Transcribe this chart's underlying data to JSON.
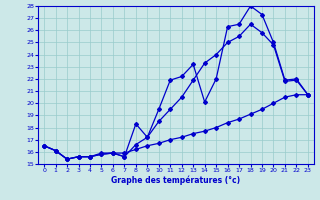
{
  "xlabel": "Graphe des températures (°c)",
  "xlim": [
    -0.5,
    23.5
  ],
  "ylim": [
    15,
    28
  ],
  "xticks": [
    0,
    1,
    2,
    3,
    4,
    5,
    6,
    7,
    8,
    9,
    10,
    11,
    12,
    13,
    14,
    15,
    16,
    17,
    18,
    19,
    20,
    21,
    22,
    23
  ],
  "yticks": [
    15,
    16,
    17,
    18,
    19,
    20,
    21,
    22,
    23,
    24,
    25,
    26,
    27,
    28
  ],
  "background_color": "#cce8e8",
  "line_color": "#0000cc",
  "grid_color": "#99cccc",
  "line1": {
    "x": [
      0,
      1,
      2,
      3,
      4,
      5,
      6,
      7,
      8,
      9,
      10,
      11,
      12,
      13,
      14,
      15,
      16,
      17,
      18,
      19,
      20,
      21,
      22,
      23
    ],
    "y": [
      16.5,
      16.1,
      15.4,
      15.6,
      15.6,
      15.8,
      15.9,
      15.6,
      18.3,
      17.2,
      19.5,
      21.9,
      22.2,
      23.2,
      20.1,
      22.0,
      26.3,
      26.5,
      28.0,
      27.3,
      25.0,
      21.9,
      22.0,
      20.7
    ]
  },
  "line2": {
    "x": [
      0,
      1,
      2,
      3,
      4,
      5,
      6,
      7,
      8,
      9,
      10,
      11,
      12,
      13,
      14,
      15,
      16,
      17,
      18,
      19,
      20,
      21,
      22,
      23
    ],
    "y": [
      16.5,
      16.1,
      15.4,
      15.6,
      15.6,
      15.8,
      15.9,
      15.6,
      16.6,
      17.2,
      18.5,
      19.5,
      20.5,
      21.9,
      23.3,
      24.0,
      25.0,
      25.5,
      26.5,
      25.8,
      24.8,
      21.8,
      21.9,
      20.7
    ]
  },
  "line3": {
    "x": [
      0,
      1,
      2,
      3,
      4,
      5,
      6,
      7,
      8,
      9,
      10,
      11,
      12,
      13,
      14,
      15,
      16,
      17,
      18,
      19,
      20,
      21,
      22,
      23
    ],
    "y": [
      16.5,
      16.1,
      15.4,
      15.6,
      15.6,
      15.9,
      15.9,
      15.9,
      16.2,
      16.5,
      16.7,
      17.0,
      17.2,
      17.5,
      17.7,
      18.0,
      18.4,
      18.7,
      19.1,
      19.5,
      20.0,
      20.5,
      20.7,
      20.7
    ]
  }
}
